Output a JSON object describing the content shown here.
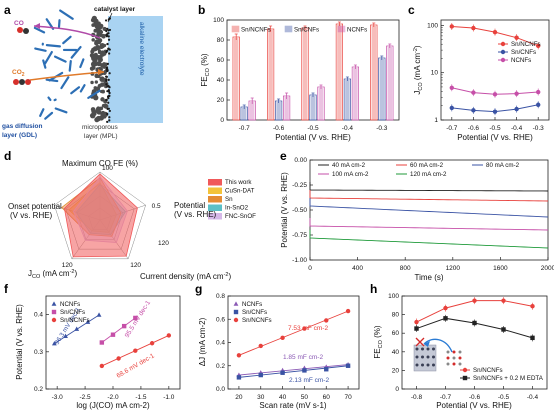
{
  "panel_labels": [
    "a",
    "b",
    "c",
    "d",
    "e",
    "f",
    "g",
    "h"
  ],
  "colors": {
    "red": "#e8413c",
    "blue": "#3a53a4",
    "purple": "#c64fa8",
    "black": "#222222",
    "green": "#1f9a3a",
    "lavender": "#8b5ab5",
    "electrolyte": "#a9d3f2",
    "gdl": "#2d6fb5",
    "mpl": "#4d4d4d"
  },
  "schematic": {
    "co_label": "CO",
    "co2_label": "CO",
    "co2_sub": "2",
    "catalyst_layer": "catalyst layer",
    "electrolyte": "alkaline electrolyte",
    "gdl_line1": "gas diffusion",
    "gdl_line2": "layer (GDL)",
    "mpl_line1": "microporous",
    "mpl_line2": "layer (MPL)"
  },
  "ylabel_fe": "FE",
  "ylabel_fe_sub": "CO",
  "ylabel_fe_unit": " (%)",
  "ylabel_j": "J",
  "ylabel_j_sub": "CO",
  "ylabel_j_unit": " (mA cm",
  "ylabel_j_sup": "-2",
  "ylabel_j_close": ")",
  "radar_ann": "120",
  "axis_potential": "Potential (V vs. RHE)",
  "chart_data": [
    {
      "id": "b",
      "type": "bar",
      "categories": [
        "-0.7",
        "-0.6",
        "-0.5",
        "-0.4",
        "-0.3"
      ],
      "xlabel": "Potential (V vs. RHE)",
      "ylabel": "FE(CO) (%)",
      "ylim": [
        0,
        100
      ],
      "yticks": [
        "0",
        "20",
        "40",
        "60",
        "80",
        "100"
      ],
      "legend": "top",
      "series": [
        {
          "name": "Sn/NCNFs",
          "values": [
            83,
            91,
            92,
            96,
            95
          ],
          "errors": [
            3,
            3,
            2,
            2,
            2
          ]
        },
        {
          "name": "Sn/CNFs",
          "values": [
            13,
            19,
            25,
            41,
            62
          ],
          "errors": [
            2,
            2,
            2,
            2,
            2
          ]
        },
        {
          "name": "NCNFs",
          "values": [
            19,
            24,
            33,
            53,
            74
          ],
          "errors": [
            3,
            3,
            2,
            2,
            2
          ]
        }
      ]
    },
    {
      "id": "c",
      "type": "line",
      "x": [
        -0.7,
        -0.6,
        -0.5,
        -0.4,
        -0.3
      ],
      "xticks": [
        "-0.7",
        "-0.6",
        "-0.5",
        "-0.4",
        "-0.3"
      ],
      "xlabel": "Potential (V vs. RHE)",
      "ylabel": "J(CO) (mA cm-2)",
      "yscale": "log",
      "ylim": [
        1,
        130
      ],
      "yticks": [
        "1",
        "10",
        "100"
      ],
      "legend": "top-right",
      "series": [
        {
          "name": "Sn/NCNFs",
          "values": [
            95,
            88,
            72,
            55,
            37
          ]
        },
        {
          "name": "Sn/CNFs",
          "values": [
            1.8,
            1.6,
            1.5,
            1.7,
            2.1
          ]
        },
        {
          "name": "NCNFs",
          "values": [
            4.8,
            3.8,
            3.5,
            3.6,
            3.9
          ]
        }
      ]
    },
    {
      "id": "d",
      "type": "radar",
      "axes": [
        "Maximum CO FE (%)",
        "Potential (V vs. RHE)",
        "Current density (mA cm²)",
        "J(CO) (mA cm-2)",
        "Onset potential (V vs. RHE)"
      ],
      "tick_labels": [
        {
          "axis": 0,
          "text": "100"
        },
        {
          "axis": 1,
          "text": "0.5"
        },
        {
          "axis": 2,
          "text": "120"
        },
        {
          "axis": 3,
          "text": "120"
        }
      ],
      "legend": "right",
      "series": [
        {
          "name": "This work",
          "values": [
            0.96,
            0.82,
            0.93,
            0.95,
            0.78
          ]
        },
        {
          "name": "CuSn-DAT",
          "values": [
            0.78,
            0.36,
            0.32,
            0.28,
            0.68
          ]
        },
        {
          "name": "Sn",
          "values": [
            0.88,
            0.46,
            0.42,
            0.38,
            0.84
          ]
        },
        {
          "name": "In-SnO2",
          "values": [
            0.74,
            0.56,
            0.38,
            0.34,
            0.52
          ]
        },
        {
          "name": "FNC-SnOF",
          "values": [
            0.9,
            0.6,
            0.58,
            0.52,
            0.58
          ]
        }
      ]
    },
    {
      "id": "e",
      "type": "line",
      "xlabel": "Time (s)",
      "ylabel": "Potential (V vs. RHE)",
      "xlim": [
        0,
        2000
      ],
      "ylim": [
        -1.0,
        0.0
      ],
      "xticks": [
        "0",
        "400",
        "800",
        "1200",
        "1600",
        "2000"
      ],
      "yticks": [
        "0.00",
        "-0.25",
        "-0.50",
        "-0.75",
        "-1.00"
      ],
      "legend": "top",
      "series": [
        {
          "name": "40 mA cm-2",
          "start": -0.3,
          "end": -0.31
        },
        {
          "name": "60 mA cm-2",
          "start": -0.38,
          "end": -0.41
        },
        {
          "name": "80 mA cm-2",
          "start": -0.46,
          "end": -0.57
        },
        {
          "name": "100 mA cm-2",
          "start": -0.66,
          "end": -0.7
        },
        {
          "name": "120 mA cm-2",
          "start": -0.78,
          "end": -0.88
        }
      ]
    },
    {
      "id": "f",
      "type": "scatter",
      "xlabel": "log (J(CO) mA cm-2)",
      "ylabel": "Potential (V vs. RHE)",
      "xlim": [
        -3.2,
        -0.8
      ],
      "ylim": [
        0.2,
        0.45
      ],
      "xticks": [
        "-3.0",
        "-2.5",
        "-2.0",
        "-1.5",
        "-1.0"
      ],
      "yticks": [
        "0.2",
        "0.3",
        "0.4"
      ],
      "legend": "top-left",
      "series": [
        {
          "name": "NCNFs",
          "x": [
            -3.05,
            -2.85,
            -2.65,
            -2.45,
            -2.25
          ],
          "y": [
            0.322,
            0.342,
            0.361,
            0.38,
            0.399
          ],
          "slope_label": "96.3 mV dec-1"
        },
        {
          "name": "Sn/CNFs",
          "x": [
            -2.2,
            -2.0,
            -1.8,
            -1.6
          ],
          "y": [
            0.325,
            0.346,
            0.369,
            0.391
          ],
          "slope_label": "95.5 mV dec-1"
        },
        {
          "name": "Sn/NCNFs",
          "x": [
            -2.2,
            -1.9,
            -1.6,
            -1.3,
            -1.0
          ],
          "y": [
            0.262,
            0.282,
            0.303,
            0.323,
            0.344
          ],
          "slope_label": "68.6 mV dec-1"
        }
      ]
    },
    {
      "id": "g",
      "type": "scatter",
      "xlabel": "Scan rate (mV s-1)",
      "ylabel": "ΔJ (mA cm-2)",
      "xlim": [
        15,
        75
      ],
      "ylim": [
        0.0,
        0.8
      ],
      "xticks": [
        "20",
        "30",
        "40",
        "50",
        "60",
        "70"
      ],
      "yticks": [
        "0.0",
        "0.2",
        "0.4",
        "0.6",
        "0.8"
      ],
      "legend": "top-left",
      "series": [
        {
          "name": "NCNFs",
          "x": [
            20,
            30,
            40,
            50,
            60,
            70
          ],
          "y": [
            0.12,
            0.14,
            0.16,
            0.18,
            0.19,
            0.21
          ],
          "slope_label": "1.85 mF cm-2"
        },
        {
          "name": "Sn/CNFs",
          "x": [
            20,
            30,
            40,
            50,
            60,
            70
          ],
          "y": [
            0.1,
            0.12,
            0.14,
            0.16,
            0.17,
            0.2
          ],
          "slope_label": "2.13 mF cm-2"
        },
        {
          "name": "Sn/NCNFs",
          "x": [
            20,
            30,
            40,
            50,
            60,
            70
          ],
          "y": [
            0.29,
            0.37,
            0.44,
            0.52,
            0.59,
            0.67
          ],
          "slope_label": "7.53 mF cm-2"
        }
      ]
    },
    {
      "id": "h",
      "type": "line",
      "x": [
        -0.8,
        -0.7,
        -0.6,
        -0.5,
        -0.4
      ],
      "xticks": [
        "-0.8",
        "-0.7",
        "-0.6",
        "-0.5",
        "-0.4"
      ],
      "xlabel": "Potential (V vs. RHE)",
      "ylabel": "FE(CO) (%)",
      "ylim": [
        0,
        100
      ],
      "yticks": [
        "0",
        "20",
        "40",
        "60",
        "80",
        "100"
      ],
      "legend": "bottom-right",
      "series": [
        {
          "name": "Sn/NCNFs",
          "values": [
            72,
            87,
            95,
            95,
            89
          ]
        },
        {
          "name": "Sn/NCNFs + 0.2 M EDTA",
          "values": [
            65,
            76,
            71,
            64,
            55
          ]
        }
      ]
    }
  ],
  "radar_axis_labels": {
    "top": "Maximum CO FE (%)",
    "right_1": "Potential",
    "right_2": "(V vs. RHE)",
    "bottom_right": "Current density (mA cm",
    "bottom_left": "J",
    "left_1": "Onset potential",
    "left_2": "(V vs. RHE)"
  }
}
